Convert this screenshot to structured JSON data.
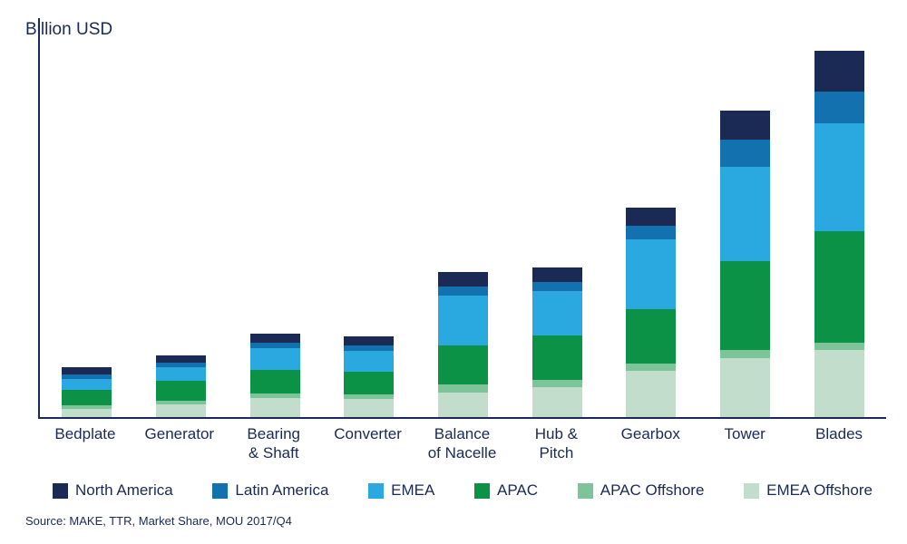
{
  "chart": {
    "title": "Billion USD",
    "source": "Source: MAKE, TTR, Market Share, MOU 2017/Q4"
  },
  "colors": {
    "axis": "#1b2a55",
    "text": "#1b2a55"
  },
  "chart_data": {
    "type": "bar",
    "stacked": true,
    "title": "Billion USD",
    "ylabel": "Billion USD",
    "xlabel": "",
    "ylim": [
      0,
      21.5
    ],
    "grid": false,
    "legend_position": "bottom",
    "source": "Source: MAKE, TTR, Market Share, MOU 2017/Q4",
    "categories": [
      "Bedplate",
      "Generator",
      "Bearing & Shaft",
      "Converter",
      "Balance of Nacelle",
      "Hub & Pitch",
      "Gearbox",
      "Tower",
      "Blades"
    ],
    "category_labels": [
      "Bedplate",
      "Generator",
      "Bearing\n& Shaft",
      "Converter",
      "Balance\nof Nacelle",
      "Hub &\nPitch",
      "Gearbox",
      "Tower",
      "Blades"
    ],
    "stack_order_bottom_to_top": [
      "EMEA Offshore",
      "APAC Offshore",
      "APAC",
      "EMEA",
      "Latin America",
      "North America"
    ],
    "series": [
      {
        "name": "North America",
        "color": "#1b2a55",
        "values": [
          0.4,
          0.4,
          0.5,
          0.5,
          0.75,
          0.75,
          1.0,
          1.55,
          2.2
        ]
      },
      {
        "name": "Latin America",
        "color": "#1371b0",
        "values": [
          0.25,
          0.25,
          0.3,
          0.3,
          0.5,
          0.5,
          0.7,
          1.45,
          1.7
        ]
      },
      {
        "name": "EMEA",
        "color": "#2aa9e0",
        "values": [
          0.6,
          0.75,
          1.15,
          1.1,
          2.7,
          2.4,
          3.8,
          5.1,
          5.85
        ]
      },
      {
        "name": "APAC",
        "color": "#0c9247",
        "values": [
          0.8,
          1.05,
          1.3,
          1.25,
          2.1,
          2.4,
          2.9,
          4.8,
          6.0
        ]
      },
      {
        "name": "APAC Offshore",
        "color": "#7dc598",
        "values": [
          0.2,
          0.2,
          0.2,
          0.2,
          0.45,
          0.4,
          0.4,
          0.4,
          0.4
        ]
      },
      {
        "name": "EMEA Offshore",
        "color": "#c2ddcb",
        "values": [
          0.45,
          0.7,
          1.05,
          1.0,
          1.3,
          1.6,
          2.5,
          3.2,
          3.6
        ]
      }
    ]
  }
}
